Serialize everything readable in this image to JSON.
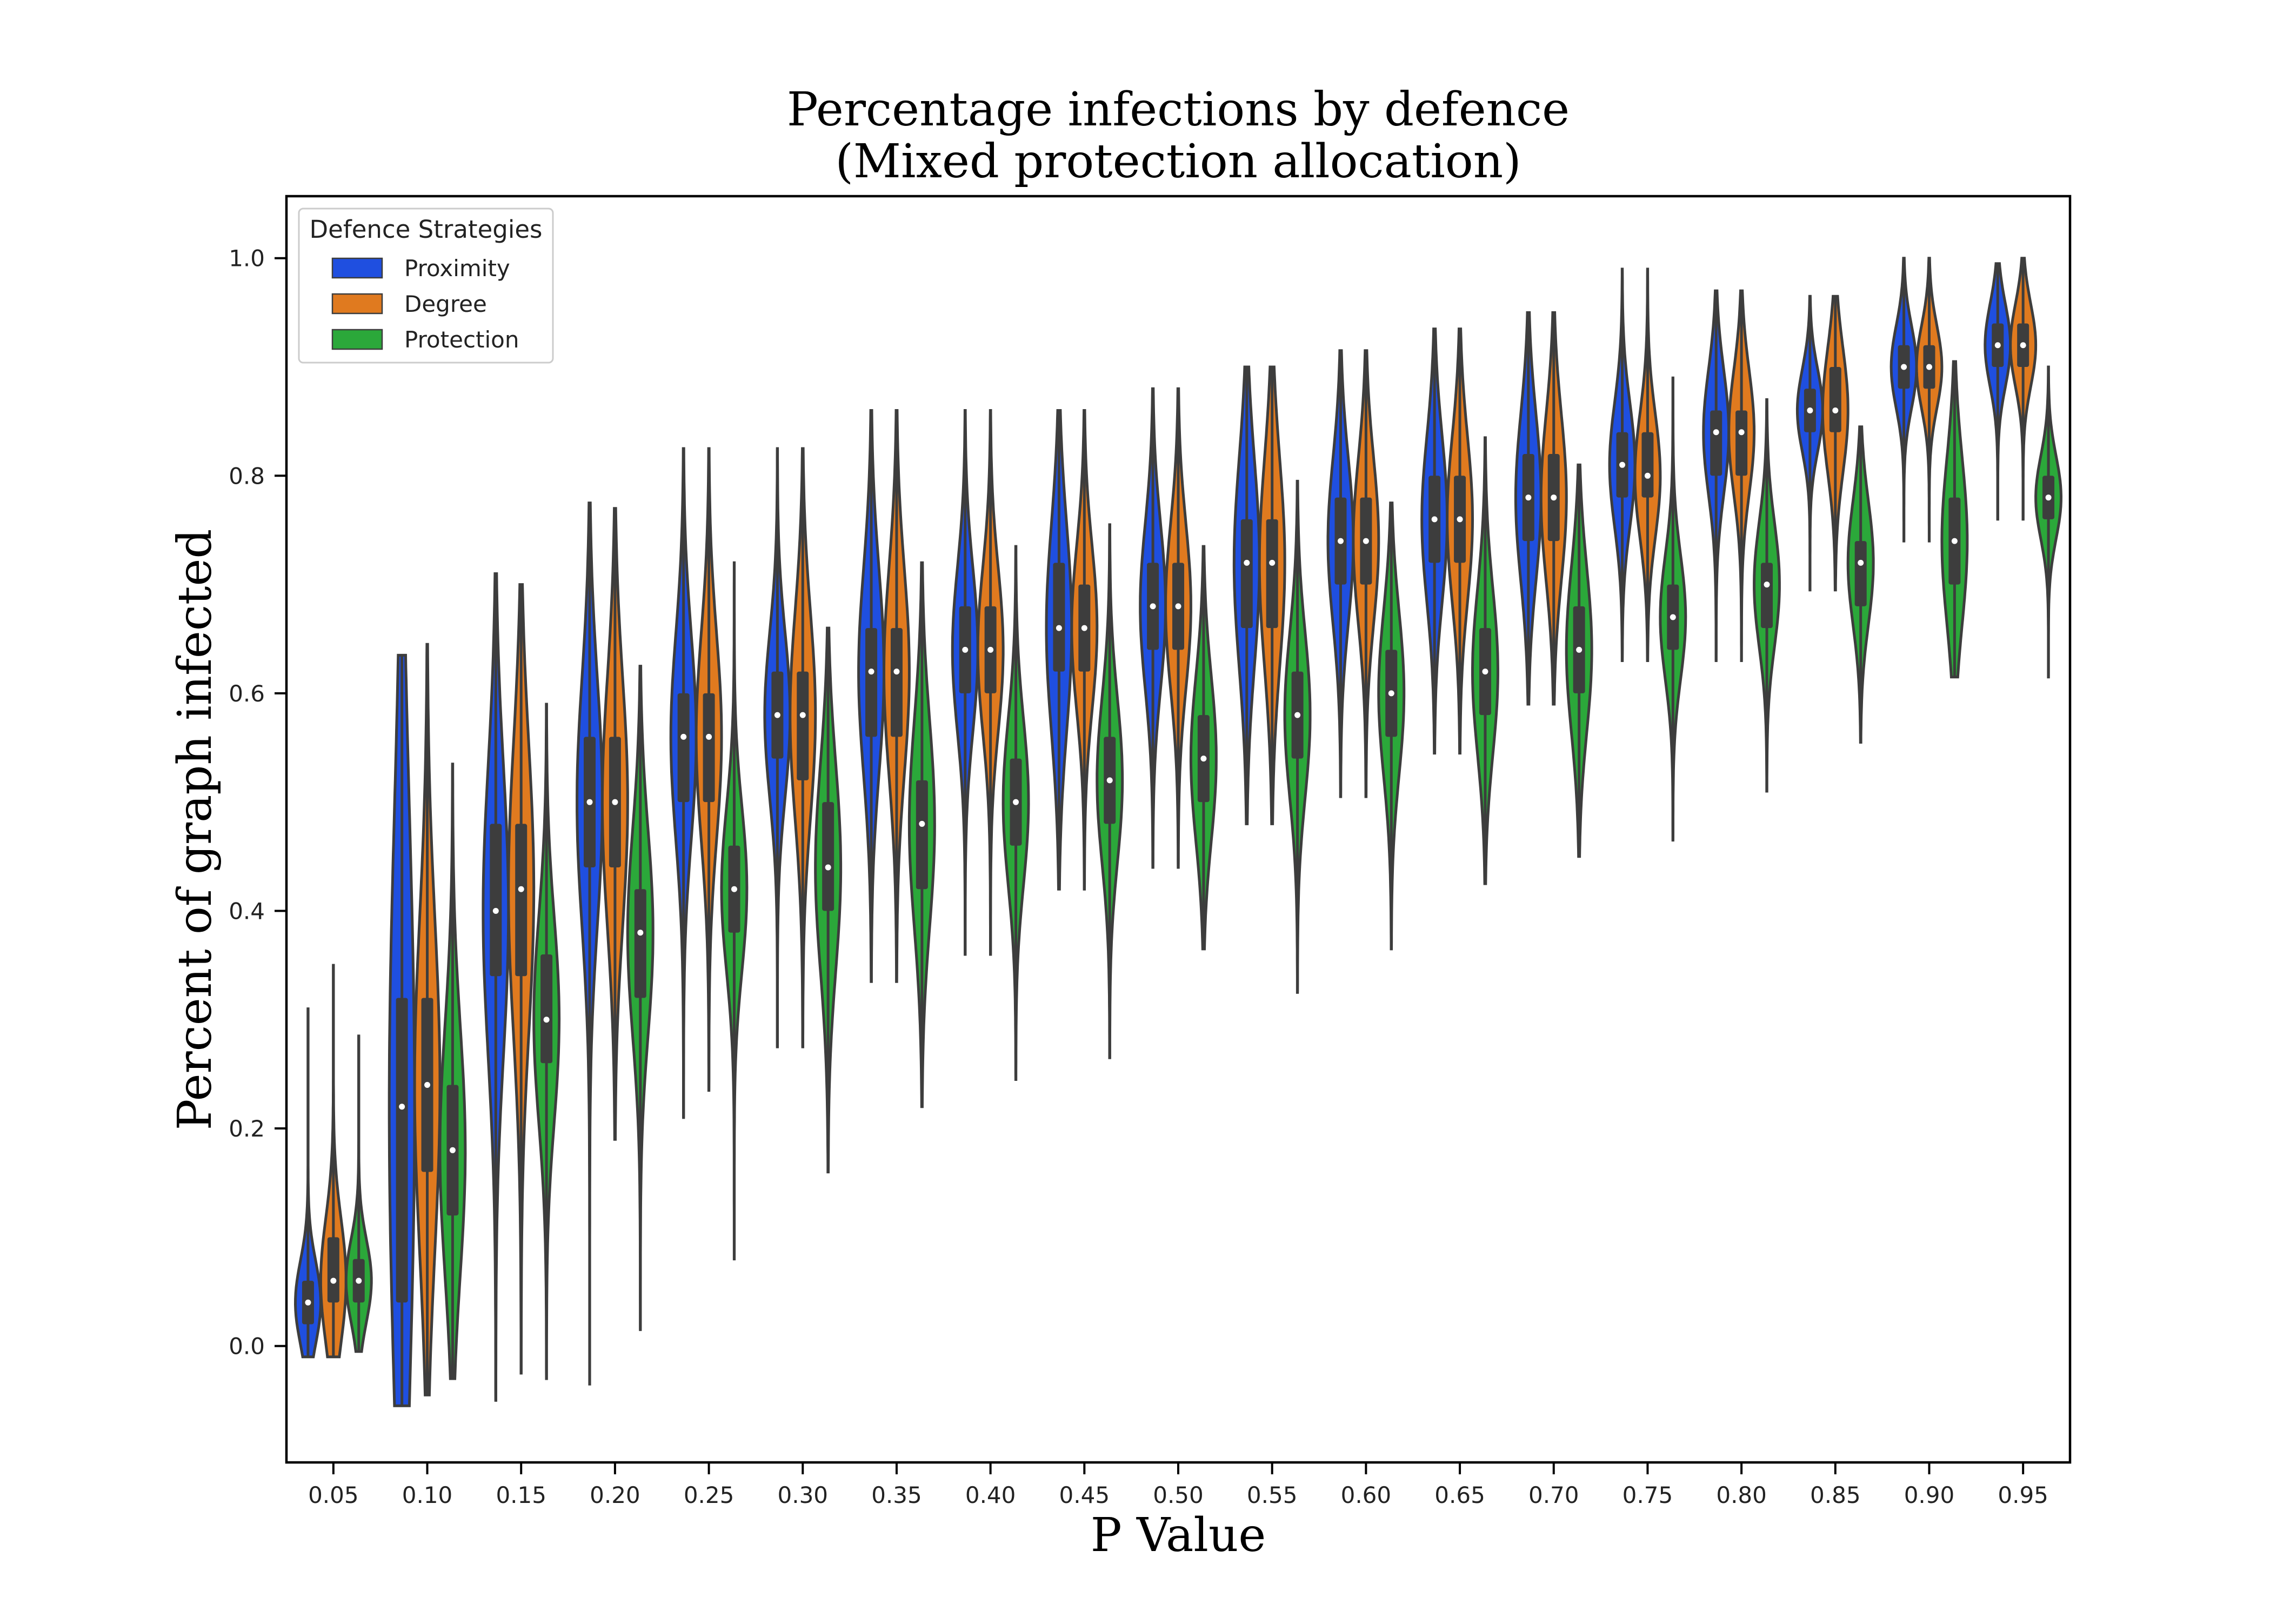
{
  "chart_data": {
    "type": "violin",
    "title": "Percentage infections by defence\n(Mixed protection allocation)",
    "title_lines": [
      "Percentage infections by defence",
      "(Mixed protection allocation)"
    ],
    "xlabel": "P Value",
    "ylabel": "Percent of graph infected",
    "ylim": [
      -0.107,
      1.057
    ],
    "y_ticks": [
      "0.0",
      "0.2",
      "0.4",
      "0.6",
      "0.8",
      "1.0"
    ],
    "y_tick_values": [
      0.0,
      0.2,
      0.4,
      0.6,
      0.8,
      1.0
    ],
    "categories": [
      "0.05",
      "0.10",
      "0.15",
      "0.20",
      "0.25",
      "0.30",
      "0.35",
      "0.40",
      "0.45",
      "0.50",
      "0.55",
      "0.60",
      "0.65",
      "0.70",
      "0.75",
      "0.80",
      "0.85",
      "0.90",
      "0.95"
    ],
    "legend": {
      "title": "Defence Strategies",
      "position": "upper-left"
    },
    "grid": false,
    "series": [
      {
        "name": "Proximity",
        "color": "#1f4fe0",
        "median": [
          0.04,
          0.22,
          0.4,
          0.5,
          0.56,
          0.58,
          0.62,
          0.64,
          0.66,
          0.68,
          0.72,
          0.74,
          0.76,
          0.78,
          0.81,
          0.84,
          0.86,
          0.9,
          0.92
        ],
        "q1": [
          0.02,
          0.04,
          0.34,
          0.44,
          0.5,
          0.54,
          0.56,
          0.6,
          0.62,
          0.64,
          0.66,
          0.7,
          0.72,
          0.74,
          0.78,
          0.8,
          0.84,
          0.88,
          0.9
        ],
        "q3": [
          0.06,
          0.32,
          0.48,
          0.56,
          0.6,
          0.62,
          0.66,
          0.68,
          0.72,
          0.72,
          0.76,
          0.78,
          0.8,
          0.82,
          0.84,
          0.86,
          0.88,
          0.92,
          0.94
        ],
        "min": [
          -0.01,
          -0.055,
          -0.05,
          -0.035,
          0.21,
          0.275,
          0.335,
          0.36,
          0.42,
          0.44,
          0.48,
          0.505,
          0.545,
          0.59,
          0.63,
          0.63,
          0.695,
          0.74,
          0.76
        ],
        "max": [
          0.31,
          0.635,
          0.71,
          0.775,
          0.825,
          0.825,
          0.86,
          0.86,
          0.86,
          0.88,
          0.9,
          0.915,
          0.935,
          0.95,
          0.99,
          0.97,
          0.965,
          1.0,
          0.995
        ]
      },
      {
        "name": "Degree",
        "color": "#e07a1f",
        "median": [
          0.06,
          0.24,
          0.42,
          0.5,
          0.56,
          0.58,
          0.62,
          0.64,
          0.66,
          0.68,
          0.72,
          0.74,
          0.76,
          0.78,
          0.8,
          0.84,
          0.86,
          0.9,
          0.92
        ],
        "q1": [
          0.04,
          0.16,
          0.34,
          0.44,
          0.5,
          0.52,
          0.56,
          0.6,
          0.62,
          0.64,
          0.66,
          0.7,
          0.72,
          0.74,
          0.78,
          0.8,
          0.84,
          0.88,
          0.9
        ],
        "q3": [
          0.1,
          0.32,
          0.48,
          0.56,
          0.6,
          0.62,
          0.66,
          0.68,
          0.7,
          0.72,
          0.76,
          0.78,
          0.8,
          0.82,
          0.84,
          0.86,
          0.9,
          0.92,
          0.94
        ],
        "min": [
          -0.01,
          -0.045,
          -0.025,
          0.19,
          0.235,
          0.275,
          0.335,
          0.36,
          0.42,
          0.44,
          0.48,
          0.505,
          0.545,
          0.59,
          0.63,
          0.63,
          0.695,
          0.74,
          0.76
        ],
        "max": [
          0.35,
          0.645,
          0.7,
          0.77,
          0.825,
          0.825,
          0.86,
          0.86,
          0.86,
          0.88,
          0.9,
          0.915,
          0.935,
          0.95,
          0.99,
          0.97,
          0.965,
          1.0,
          1.0
        ]
      },
      {
        "name": "Protection",
        "color": "#2ba83a",
        "median": [
          0.06,
          0.18,
          0.3,
          0.38,
          0.42,
          0.44,
          0.48,
          0.5,
          0.52,
          0.54,
          0.58,
          0.6,
          0.62,
          0.64,
          0.67,
          0.7,
          0.72,
          0.74,
          0.78
        ],
        "q1": [
          0.04,
          0.12,
          0.26,
          0.32,
          0.38,
          0.4,
          0.42,
          0.46,
          0.48,
          0.5,
          0.54,
          0.56,
          0.58,
          0.6,
          0.64,
          0.66,
          0.68,
          0.7,
          0.76
        ],
        "q3": [
          0.08,
          0.24,
          0.36,
          0.42,
          0.46,
          0.5,
          0.52,
          0.54,
          0.56,
          0.58,
          0.62,
          0.64,
          0.66,
          0.68,
          0.7,
          0.72,
          0.74,
          0.78,
          0.8
        ],
        "min": [
          -0.005,
          -0.03,
          -0.03,
          0.015,
          0.08,
          0.16,
          0.22,
          0.245,
          0.265,
          0.365,
          0.325,
          0.365,
          0.425,
          0.45,
          0.465,
          0.51,
          0.555,
          0.615,
          0.615
        ],
        "max": [
          0.285,
          0.535,
          0.59,
          0.625,
          0.72,
          0.66,
          0.72,
          0.735,
          0.755,
          0.735,
          0.795,
          0.775,
          0.835,
          0.81,
          0.89,
          0.87,
          0.845,
          0.905,
          0.9
        ]
      }
    ]
  }
}
